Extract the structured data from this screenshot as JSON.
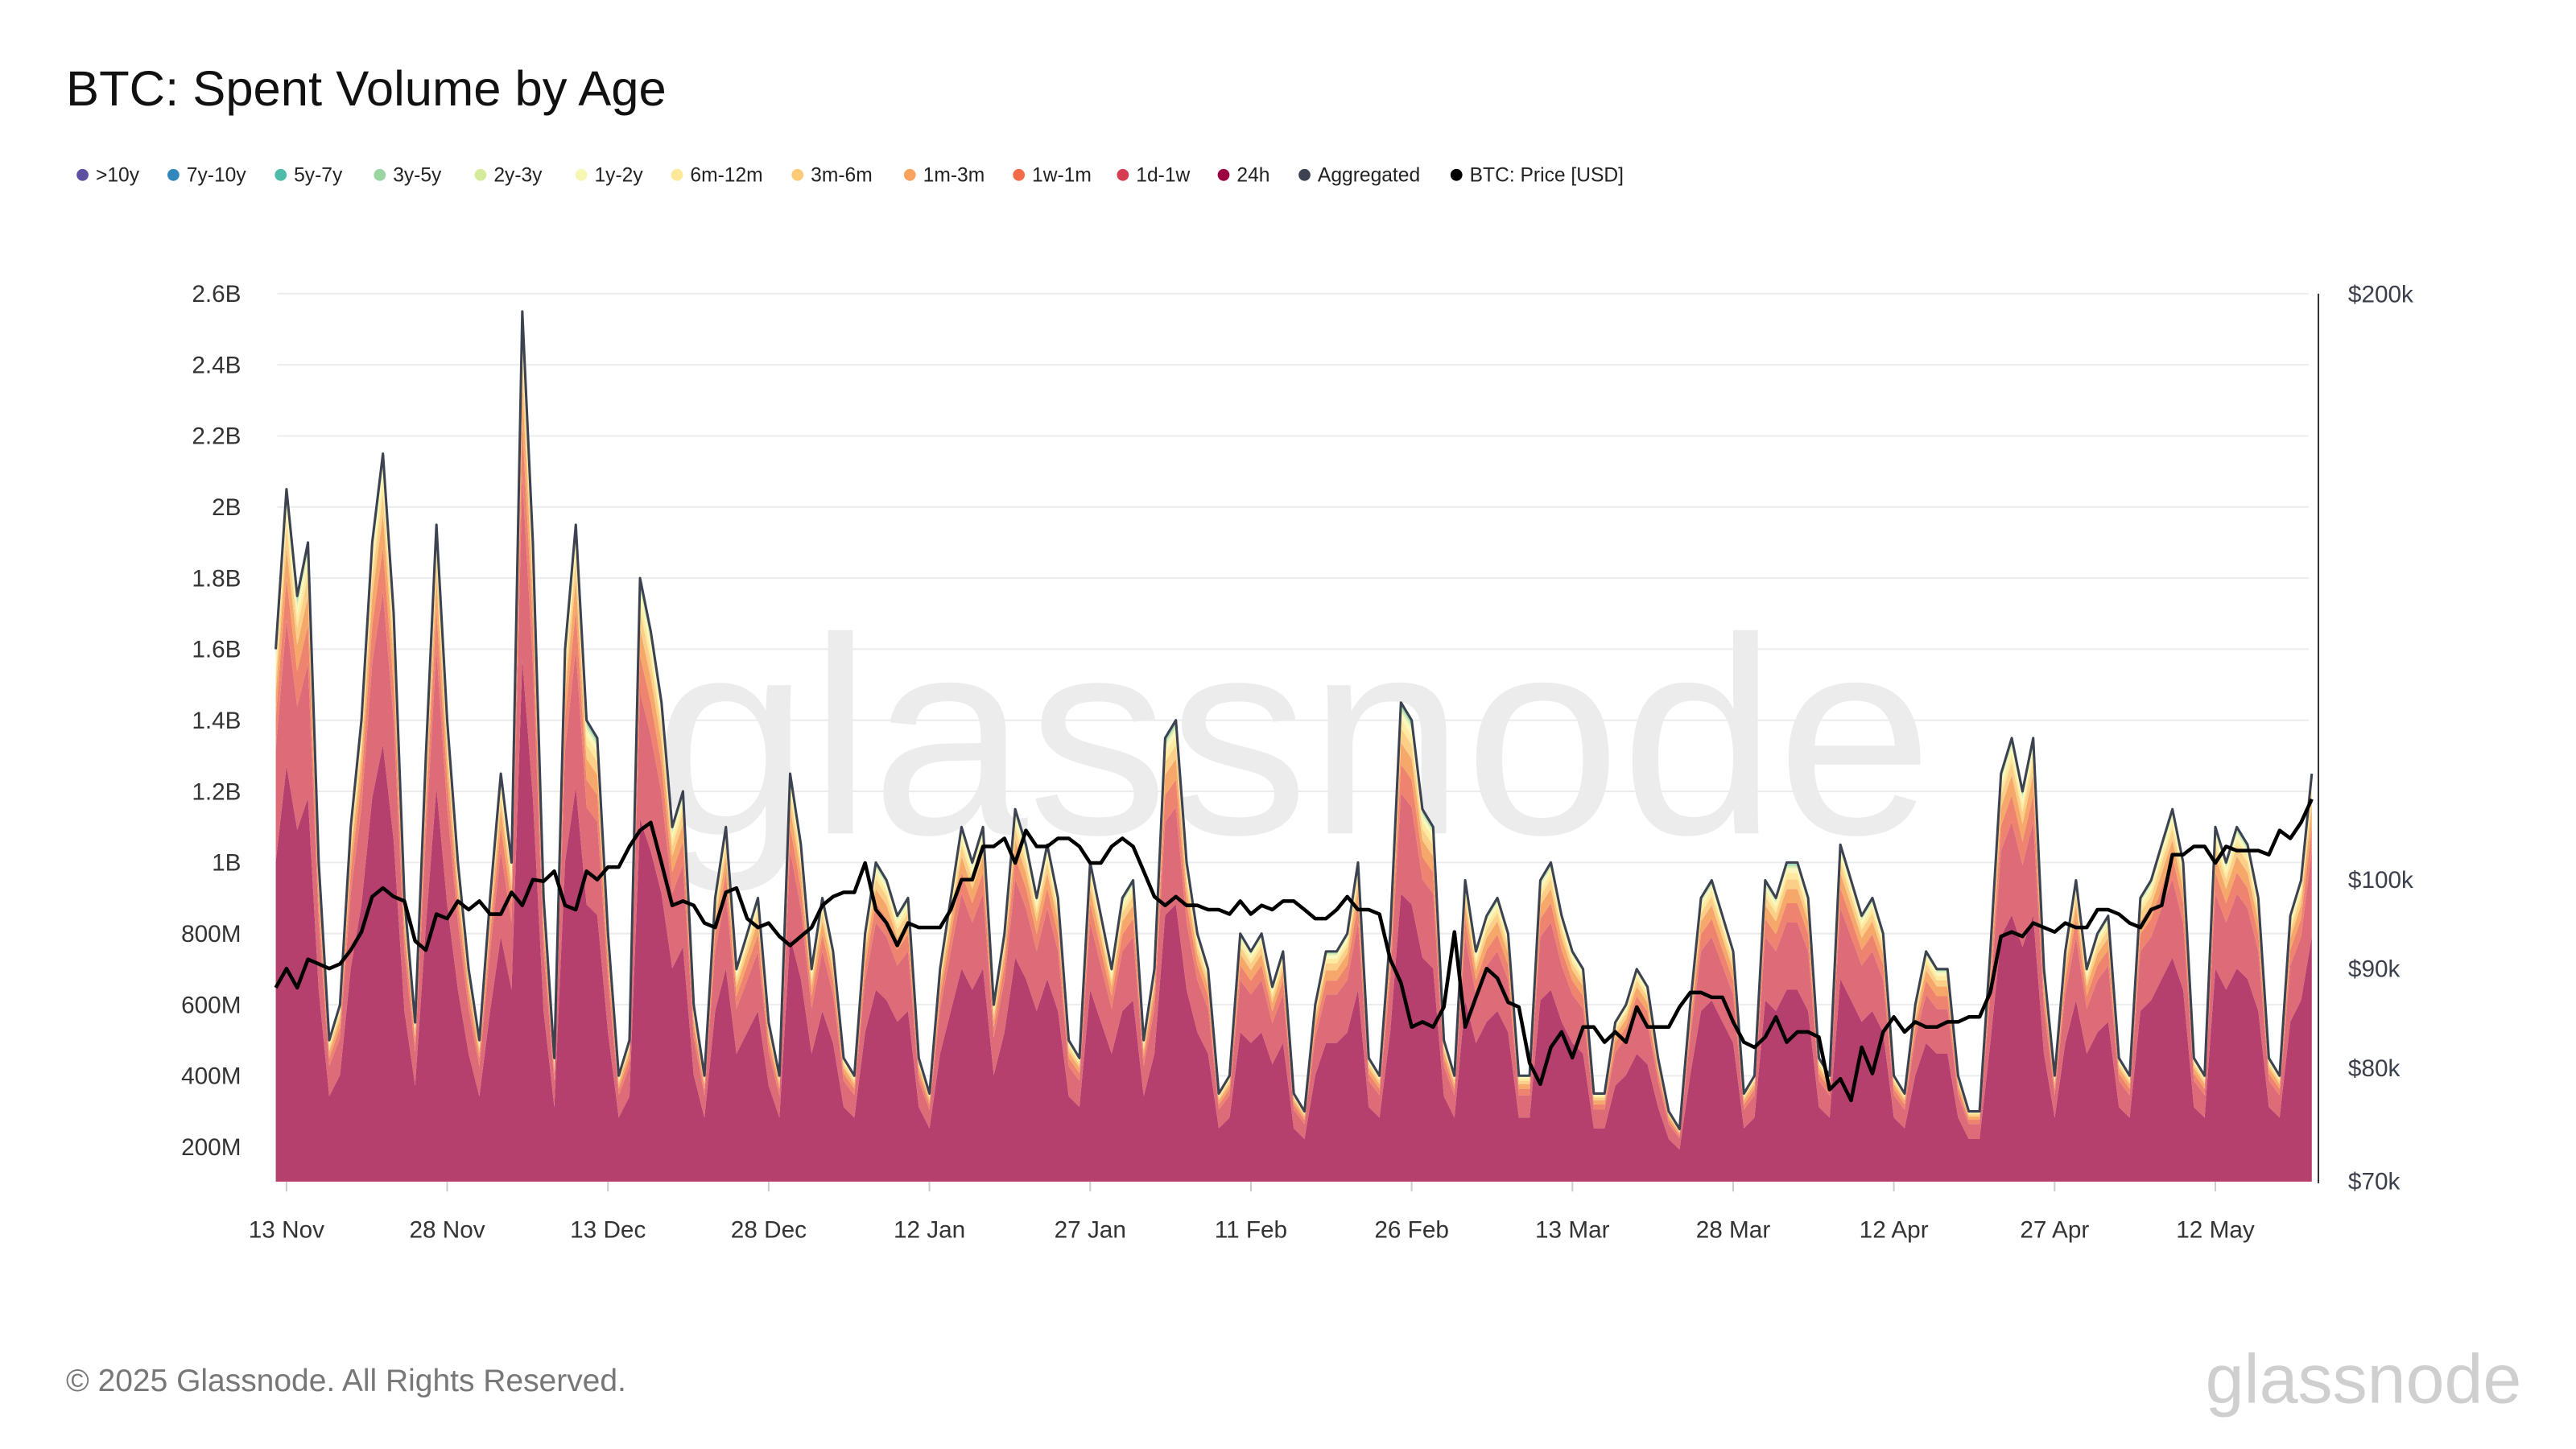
{
  "header": {
    "title": "BTC: Spent Volume by Age"
  },
  "footer": {
    "copyright": "© 2025 Glassnode. All Rights Reserved.",
    "logo_text": "glassnode",
    "watermark": "glassnode"
  },
  "legend": [
    {
      "label": ">10y",
      "color": "#5e4fa2"
    },
    {
      "label": "7y-10y",
      "color": "#3288bd"
    },
    {
      "label": "5y-7y",
      "color": "#4fbcaa"
    },
    {
      "label": "3y-5y",
      "color": "#9ad5a2"
    },
    {
      "label": "2y-3y",
      "color": "#d4ec9a"
    },
    {
      "label": "1y-2y",
      "color": "#f6f7b3"
    },
    {
      "label": "6m-12m",
      "color": "#fde99a"
    },
    {
      "label": "3m-6m",
      "color": "#fdcb78"
    },
    {
      "label": "1m-3m",
      "color": "#f9a35e"
    },
    {
      "label": "1w-1m",
      "color": "#f26b49"
    },
    {
      "label": "1d-1w",
      "color": "#d63c52"
    },
    {
      "label": "24h",
      "color": "#9e0142"
    },
    {
      "label": "Aggregated",
      "color": "#3c4250"
    },
    {
      "label": "BTC: Price [USD]",
      "color": "#000000"
    }
  ],
  "chart_data": {
    "type": "area",
    "stacked": true,
    "title": "BTC: Spent Volume by Age",
    "grid": true,
    "legend_position": "top-left",
    "y_left": {
      "scale": "linear",
      "range": [
        100000000,
        2600000000
      ],
      "ticks": [
        "200M",
        "400M",
        "600M",
        "800M",
        "1B",
        "1.2B",
        "1.4B",
        "1.6B",
        "1.8B",
        "2B",
        "2.2B",
        "2.4B",
        "2.6B"
      ],
      "tick_values": [
        0.2,
        0.4,
        0.6,
        0.8,
        1.0,
        1.2,
        1.4,
        1.6,
        1.8,
        2.0,
        2.2,
        2.4,
        2.6
      ],
      "unit": "B"
    },
    "y_right": {
      "scale": "log",
      "range": [
        70000,
        200000
      ],
      "ticks": [
        "$70k",
        "$80k",
        "$90k",
        "$100k",
        "$200k"
      ],
      "tick_values": [
        70,
        80,
        90,
        100,
        200
      ],
      "unit": "k USD"
    },
    "x_ticks": [
      {
        "label": "13 Nov",
        "date": "2024-11-13"
      },
      {
        "label": "28 Nov",
        "date": "2024-11-28"
      },
      {
        "label": "13 Dec",
        "date": "2024-12-13"
      },
      {
        "label": "28 Dec",
        "date": "2024-12-28"
      },
      {
        "label": "12 Jan",
        "date": "2025-01-12"
      },
      {
        "label": "27 Jan",
        "date": "2025-01-27"
      },
      {
        "label": "11 Feb",
        "date": "2025-02-11"
      },
      {
        "label": "26 Feb",
        "date": "2025-02-26"
      },
      {
        "label": "13 Mar",
        "date": "2025-03-13"
      },
      {
        "label": "28 Mar",
        "date": "2025-03-28"
      },
      {
        "label": "12 Apr",
        "date": "2025-04-12"
      },
      {
        "label": "27 Apr",
        "date": "2025-04-27"
      },
      {
        "label": "12 May",
        "date": "2025-05-12"
      }
    ],
    "age_band_share_estimate": [
      {
        "name": "24h",
        "share": 0.6,
        "fill": "#b5406e"
      },
      {
        "name": "1d-1w",
        "share": 0.21,
        "fill": "#dd6b78"
      },
      {
        "name": "1w-1m",
        "share": 0.06,
        "fill": "#ee8470"
      },
      {
        "name": "1m-3m",
        "share": 0.045,
        "fill": "#f6a86a"
      },
      {
        "name": "3m-6m",
        "share": 0.03,
        "fill": "#fbcf88"
      },
      {
        "name": "6m-12m",
        "share": 0.02,
        "fill": "#fde9a0"
      },
      {
        "name": "1y-2y",
        "share": 0.015,
        "fill": "#fbf6bc"
      },
      {
        "name": "2y-3y",
        "share": 0.007,
        "fill": "#d9eeb2"
      },
      {
        "name": "3y-5y",
        "share": 0.006,
        "fill": "#a8dcb2"
      },
      {
        "name": "5y-7y",
        "share": 0.004,
        "fill": "#7fc8bb"
      },
      {
        "name": "7y-10y",
        "share": 0.002,
        "fill": "#5aa0c8"
      },
      {
        "name": ">10y",
        "share": 0.001,
        "fill": "#7a6aa8"
      }
    ],
    "x": [
      "2024-11-12",
      "2024-11-13",
      "2024-11-14",
      "2024-11-15",
      "2024-11-16",
      "2024-11-17",
      "2024-11-18",
      "2024-11-19",
      "2024-11-20",
      "2024-11-21",
      "2024-11-22",
      "2024-11-23",
      "2024-11-24",
      "2024-11-25",
      "2024-11-26",
      "2024-11-27",
      "2024-11-28",
      "2024-11-29",
      "2024-11-30",
      "2024-12-01",
      "2024-12-02",
      "2024-12-03",
      "2024-12-04",
      "2024-12-05",
      "2024-12-06",
      "2024-12-07",
      "2024-12-08",
      "2024-12-09",
      "2024-12-10",
      "2024-12-11",
      "2024-12-12",
      "2024-12-13",
      "2024-12-14",
      "2024-12-15",
      "2024-12-16",
      "2024-12-17",
      "2024-12-18",
      "2024-12-19",
      "2024-12-20",
      "2024-12-21",
      "2024-12-22",
      "2024-12-23",
      "2024-12-24",
      "2024-12-25",
      "2024-12-26",
      "2024-12-27",
      "2024-12-28",
      "2024-12-29",
      "2024-12-30",
      "2024-12-31",
      "2025-01-01",
      "2025-01-02",
      "2025-01-03",
      "2025-01-04",
      "2025-01-05",
      "2025-01-06",
      "2025-01-07",
      "2025-01-08",
      "2025-01-09",
      "2025-01-10",
      "2025-01-11",
      "2025-01-12",
      "2025-01-13",
      "2025-01-14",
      "2025-01-15",
      "2025-01-16",
      "2025-01-17",
      "2025-01-18",
      "2025-01-19",
      "2025-01-20",
      "2025-01-21",
      "2025-01-22",
      "2025-01-23",
      "2025-01-24",
      "2025-01-25",
      "2025-01-26",
      "2025-01-27",
      "2025-01-28",
      "2025-01-29",
      "2025-01-30",
      "2025-01-31",
      "2025-02-01",
      "2025-02-02",
      "2025-02-03",
      "2025-02-04",
      "2025-02-05",
      "2025-02-06",
      "2025-02-07",
      "2025-02-08",
      "2025-02-09",
      "2025-02-10",
      "2025-02-11",
      "2025-02-12",
      "2025-02-13",
      "2025-02-14",
      "2025-02-15",
      "2025-02-16",
      "2025-02-17",
      "2025-02-18",
      "2025-02-19",
      "2025-02-20",
      "2025-02-21",
      "2025-02-22",
      "2025-02-23",
      "2025-02-24",
      "2025-02-25",
      "2025-02-26",
      "2025-02-27",
      "2025-02-28",
      "2025-03-01",
      "2025-03-02",
      "2025-03-03",
      "2025-03-04",
      "2025-03-05",
      "2025-03-06",
      "2025-03-07",
      "2025-03-08",
      "2025-03-09",
      "2025-03-10",
      "2025-03-11",
      "2025-03-12",
      "2025-03-13",
      "2025-03-14",
      "2025-03-15",
      "2025-03-16",
      "2025-03-17",
      "2025-03-18",
      "2025-03-19",
      "2025-03-20",
      "2025-03-21",
      "2025-03-22",
      "2025-03-23",
      "2025-03-24",
      "2025-03-25",
      "2025-03-26",
      "2025-03-27",
      "2025-03-28",
      "2025-03-29",
      "2025-03-30",
      "2025-03-31",
      "2025-04-01",
      "2025-04-02",
      "2025-04-03",
      "2025-04-04",
      "2025-04-05",
      "2025-04-06",
      "2025-04-07",
      "2025-04-08",
      "2025-04-09",
      "2025-04-10",
      "2025-04-11",
      "2025-04-12",
      "2025-04-13",
      "2025-04-14",
      "2025-04-15",
      "2025-04-16",
      "2025-04-17",
      "2025-04-18",
      "2025-04-19",
      "2025-04-20",
      "2025-04-21",
      "2025-04-22",
      "2025-04-23",
      "2025-04-24",
      "2025-04-25",
      "2025-04-26",
      "2025-04-27",
      "2025-04-28",
      "2025-04-29",
      "2025-04-30",
      "2025-05-01",
      "2025-05-02",
      "2025-05-03",
      "2025-05-04",
      "2025-05-05",
      "2025-05-06",
      "2025-05-07",
      "2025-05-08",
      "2025-05-09",
      "2025-05-10",
      "2025-05-11",
      "2025-05-12",
      "2025-05-13",
      "2025-05-14",
      "2025-05-15",
      "2025-05-16",
      "2025-05-17",
      "2025-05-18",
      "2025-05-19",
      "2025-05-20",
      "2025-05-21"
    ],
    "series": [
      {
        "name": "Aggregated",
        "unit": "B USD",
        "values": [
          1.6,
          2.05,
          1.75,
          1.9,
          1.0,
          0.5,
          0.6,
          1.1,
          1.4,
          1.9,
          2.15,
          1.7,
          0.9,
          0.55,
          1.3,
          1.95,
          1.4,
          1.0,
          0.7,
          0.5,
          0.9,
          1.25,
          1.0,
          2.55,
          1.9,
          0.9,
          0.45,
          1.6,
          1.95,
          1.4,
          1.35,
          0.8,
          0.4,
          0.5,
          1.8,
          1.65,
          1.45,
          1.1,
          1.2,
          0.6,
          0.4,
          0.9,
          1.1,
          0.7,
          0.8,
          0.9,
          0.55,
          0.4,
          1.25,
          1.05,
          0.7,
          0.9,
          0.75,
          0.45,
          0.4,
          0.8,
          1.0,
          0.95,
          0.85,
          0.9,
          0.45,
          0.35,
          0.7,
          0.9,
          1.1,
          1.0,
          1.1,
          0.6,
          0.8,
          1.15,
          1.05,
          0.9,
          1.05,
          0.9,
          0.5,
          0.45,
          1.0,
          0.85,
          0.7,
          0.9,
          0.95,
          0.5,
          0.7,
          1.35,
          1.4,
          1.0,
          0.8,
          0.7,
          0.35,
          0.4,
          0.8,
          0.75,
          0.8,
          0.65,
          0.75,
          0.35,
          0.3,
          0.6,
          0.75,
          0.75,
          0.8,
          1.0,
          0.45,
          0.4,
          0.8,
          1.45,
          1.4,
          1.15,
          1.1,
          0.5,
          0.4,
          0.95,
          0.75,
          0.85,
          0.9,
          0.8,
          0.4,
          0.4,
          0.95,
          1.0,
          0.85,
          0.75,
          0.7,
          0.35,
          0.35,
          0.55,
          0.6,
          0.7,
          0.65,
          0.45,
          0.3,
          0.25,
          0.6,
          0.9,
          0.95,
          0.85,
          0.75,
          0.35,
          0.4,
          0.95,
          0.9,
          1.0,
          1.0,
          0.9,
          0.45,
          0.4,
          1.05,
          0.95,
          0.85,
          0.9,
          0.8,
          0.4,
          0.35,
          0.6,
          0.75,
          0.7,
          0.7,
          0.4,
          0.3,
          0.3,
          0.75,
          1.25,
          1.35,
          1.2,
          1.35,
          0.7,
          0.4,
          0.75,
          0.95,
          0.7,
          0.8,
          0.85,
          0.45,
          0.4,
          0.9,
          0.95,
          1.05,
          1.15,
          1.0,
          0.45,
          0.4,
          1.1,
          1.0,
          1.1,
          1.05,
          0.9,
          0.45,
          0.4,
          0.85,
          0.95,
          1.25
        ]
      },
      {
        "name": "BTC: Price [USD]",
        "unit": "k USD",
        "axis": "right",
        "values": [
          88,
          90,
          88,
          91,
          90.5,
          90,
          90.5,
          92,
          94,
          98,
          99,
          98,
          97.5,
          93,
          92,
          96,
          95.5,
          97.5,
          96.5,
          97.5,
          96,
          96,
          98.5,
          97,
          100,
          99.8,
          101,
          97,
          96.5,
          101,
          100,
          101.5,
          101.5,
          104,
          106,
          107,
          102,
          97,
          97.5,
          97,
          95,
          94.5,
          98.5,
          99,
          95.5,
          94.5,
          95,
          93.5,
          92.5,
          93.5,
          94.5,
          97,
          98,
          98.5,
          98.5,
          102,
          96.5,
          95,
          92.5,
          95,
          94.5,
          94.5,
          94.5,
          96.5,
          100,
          100,
          104,
          104,
          105,
          102,
          106,
          104,
          104,
          105,
          105,
          104,
          102,
          102,
          104,
          105,
          104,
          101,
          98,
          97,
          98,
          97,
          97,
          96.5,
          96.5,
          96,
          97.5,
          96,
          97,
          96.5,
          97.5,
          97.5,
          96.5,
          95.5,
          95.5,
          96.5,
          98,
          96.5,
          96.5,
          96,
          91,
          88.5,
          84,
          84.5,
          84,
          86,
          94,
          84,
          87,
          90,
          89,
          86.5,
          86,
          80.5,
          78.5,
          82,
          83.5,
          81,
          84,
          84,
          82.5,
          83.5,
          82.5,
          86,
          84,
          84,
          84,
          86,
          87.5,
          87.5,
          87,
          87,
          84.5,
          82.5,
          82,
          83,
          85,
          82.5,
          83.5,
          83.5,
          83,
          78,
          79,
          77,
          82,
          79.5,
          83.5,
          85,
          83.5,
          84.5,
          84,
          84,
          84.5,
          84.5,
          85,
          85,
          87.5,
          93.5,
          94,
          93.5,
          95,
          94.5,
          94,
          95,
          94.5,
          94.5,
          96.5,
          96.5,
          96,
          95,
          94.5,
          96.5,
          97,
          103,
          103,
          104,
          104,
          102,
          104,
          103.5,
          103.5,
          103.5,
          103,
          106,
          105,
          107,
          110
        ]
      }
    ]
  }
}
